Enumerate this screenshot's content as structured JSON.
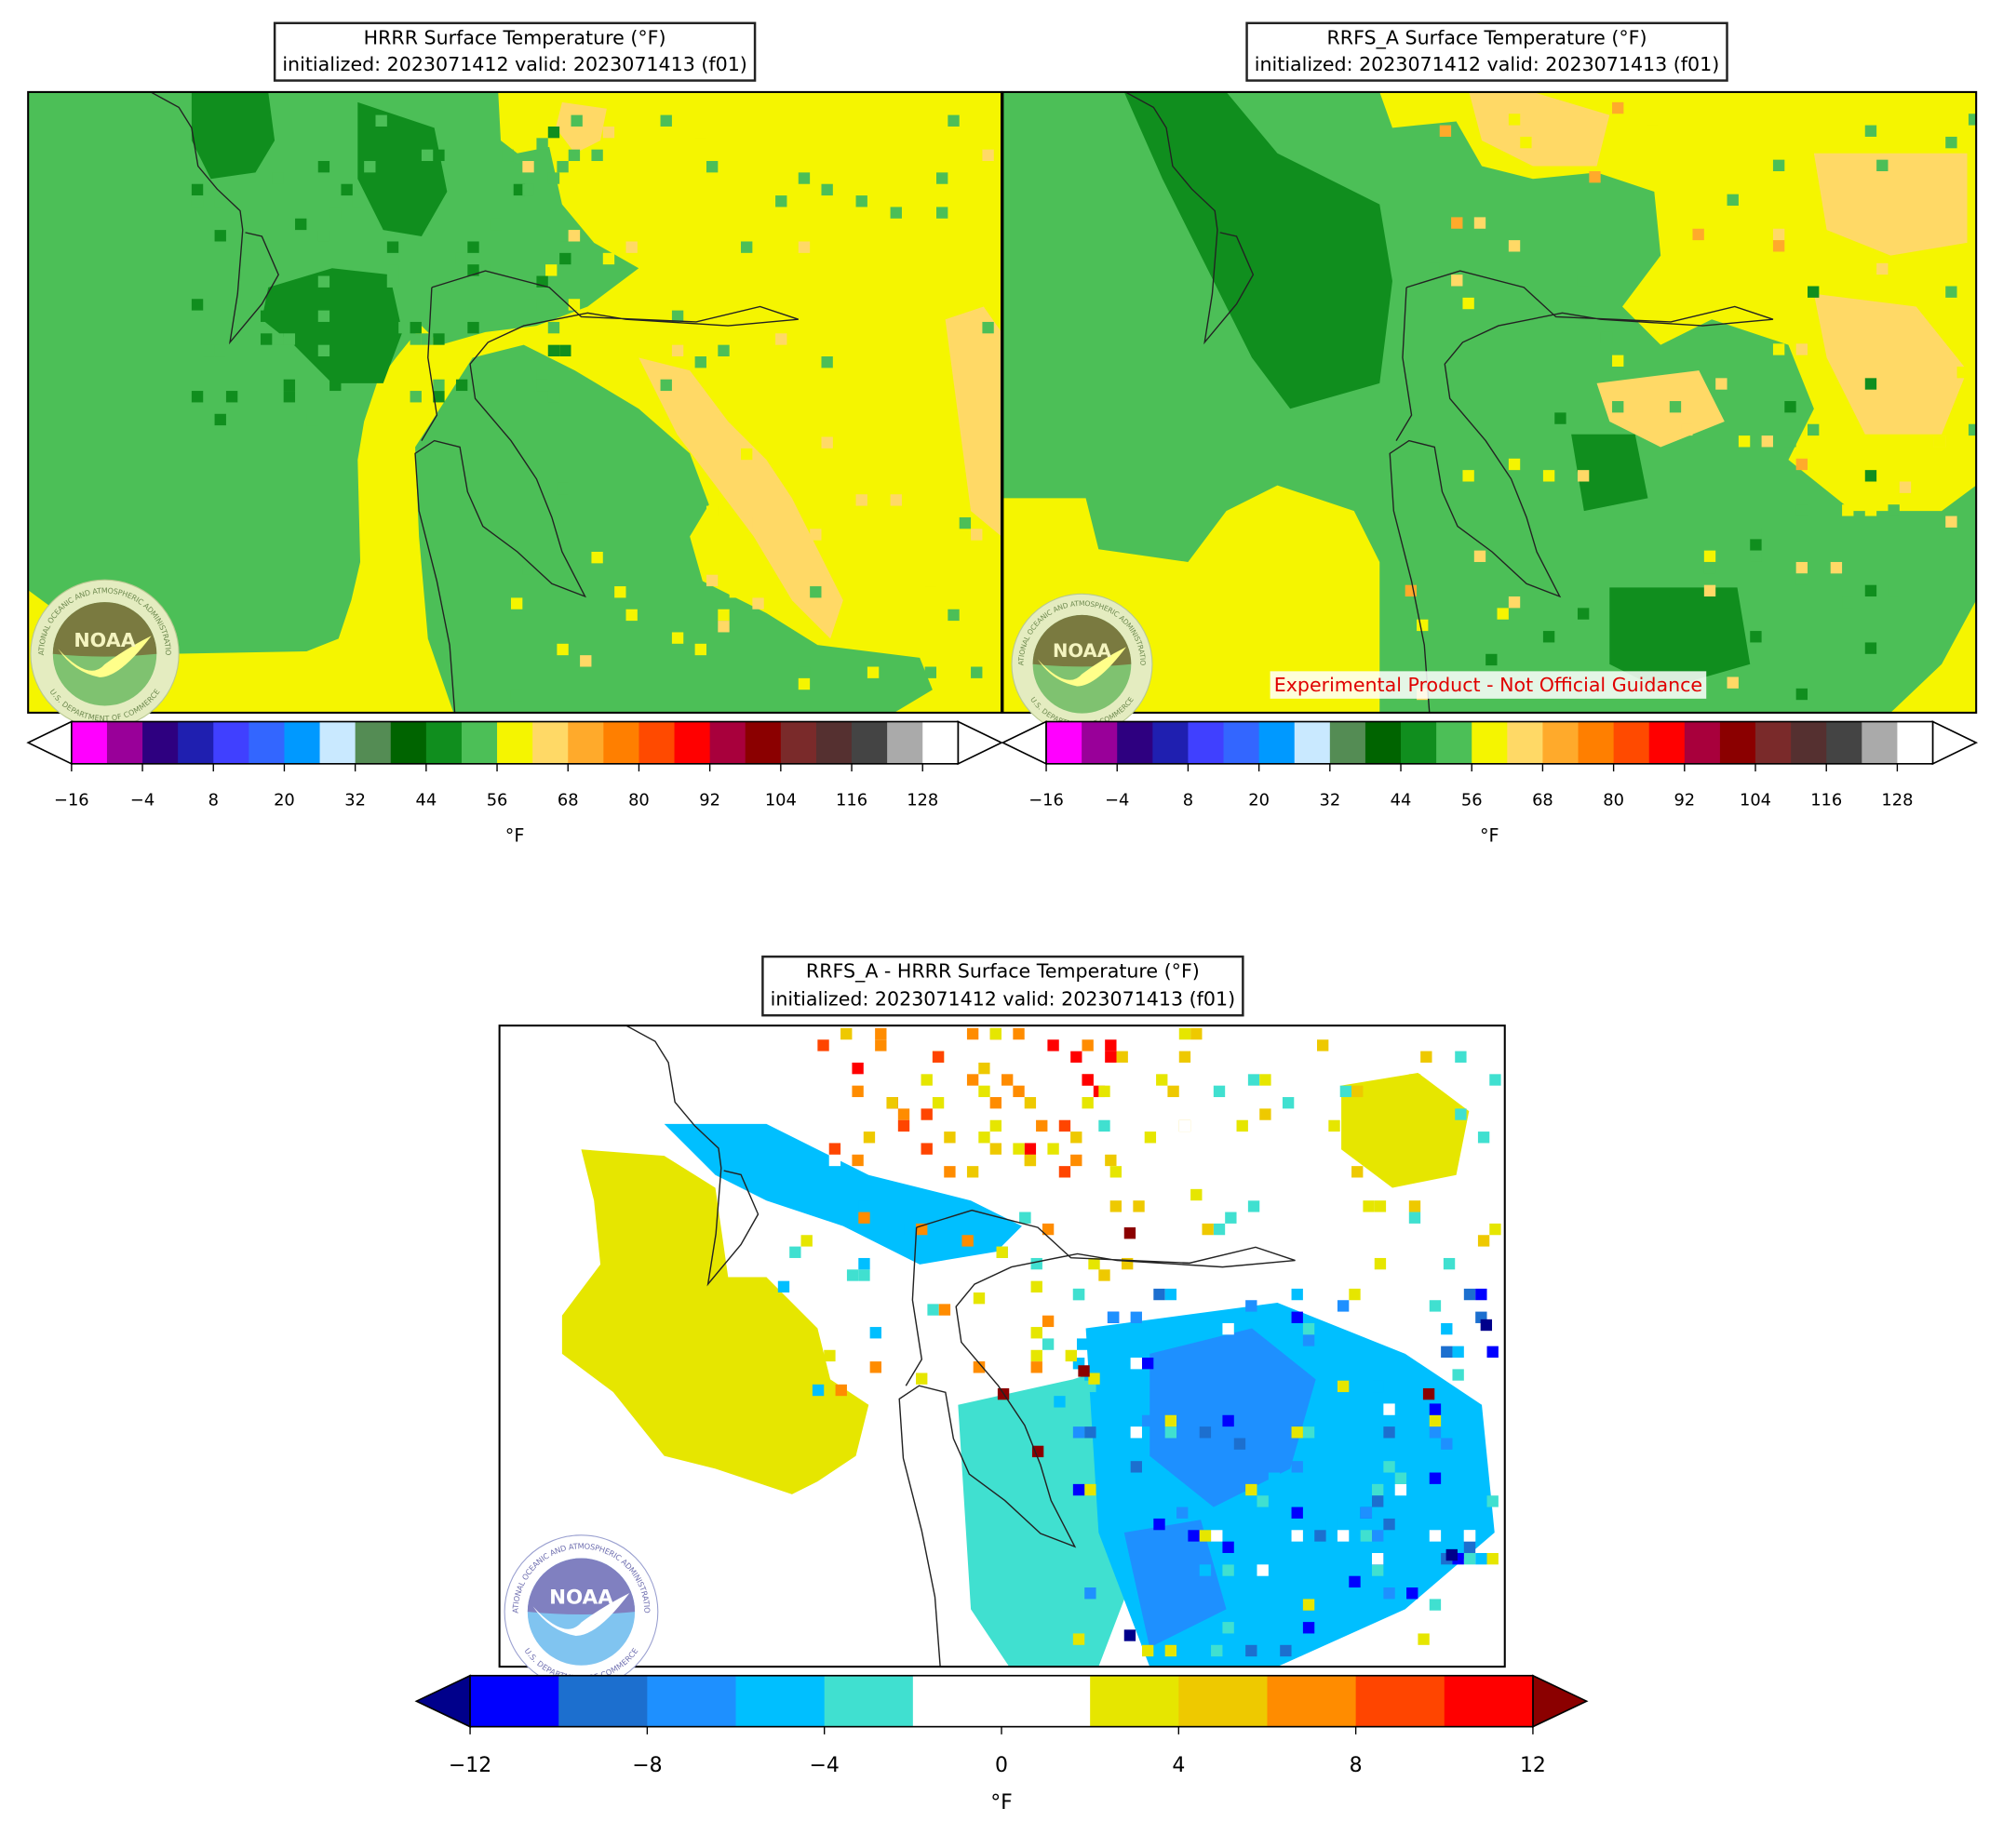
{
  "panels": [
    {
      "title": "HRRR Surface Temperature (°F)",
      "subtitle": "initialized: 2023071412 valid: 2023071413 (f01)",
      "colorbar": {
        "label": "°F",
        "bounds": [
          -16,
          134
        ],
        "colors": [
          "#ff00ff",
          "#990099",
          "#2e0080",
          "#1f1fb0",
          "#4040ff",
          "#3366ff",
          "#0099ff",
          "#c9e9ff",
          "#548c54",
          "#006400",
          "#108e1e",
          "#4cbf57",
          "#f5f500",
          "#ffd966",
          "#ffaa2b",
          "#ff7f00",
          "#ff4a00",
          "#ff0000",
          "#a8003c",
          "#8b0000",
          "#7a2a2a",
          "#553030",
          "#444444",
          "#aaaaaa",
          "#ffffff"
        ],
        "extend_colors": [
          "#ffffff",
          "#ffffff"
        ],
        "ticks": [
          {
            "value": -16,
            "label": "−16"
          },
          {
            "value": -4,
            "label": "−4"
          },
          8,
          20,
          32,
          44,
          56,
          68,
          80,
          92,
          104,
          116,
          128
        ]
      }
    },
    {
      "title": "RRFS_A Surface Temperature (°F)",
      "subtitle": "initialized: 2023071412 valid: 2023071413 (f01)",
      "annotation": "Experimental Product - Not Official Guidance",
      "colorbar": {
        "label": "°F",
        "bounds": [
          -16,
          134
        ],
        "colors": [
          "#ff00ff",
          "#990099",
          "#2e0080",
          "#1f1fb0",
          "#4040ff",
          "#3366ff",
          "#0099ff",
          "#c9e9ff",
          "#548c54",
          "#006400",
          "#108e1e",
          "#4cbf57",
          "#f5f500",
          "#ffd966",
          "#ffaa2b",
          "#ff7f00",
          "#ff4a00",
          "#ff0000",
          "#a8003c",
          "#8b0000",
          "#7a2a2a",
          "#553030",
          "#444444",
          "#aaaaaa",
          "#ffffff"
        ],
        "extend_colors": [
          "#ffffff",
          "#ffffff"
        ],
        "ticks": [
          {
            "value": -16,
            "label": "−16"
          },
          {
            "value": -4,
            "label": "−4"
          },
          8,
          20,
          32,
          44,
          56,
          68,
          80,
          92,
          104,
          116,
          128
        ]
      }
    },
    {
      "title": "RRFS_A - HRRR Surface Temperature (°F)",
      "subtitle": "initialized: 2023071412 valid: 2023071413 (f01)",
      "colorbar": {
        "label": "°F",
        "bounds": [
          -12,
          12
        ],
        "colors": [
          "#0000ff",
          "#1c6fcf",
          "#1e90ff",
          "#00bfff",
          "#40e0d0",
          "#ffffff",
          "#ffffff",
          "#e6e600",
          "#eec900",
          "#ff8c00",
          "#ff4500",
          "#ff0000"
        ],
        "extend_colors": [
          "#00008b",
          "#8b0000"
        ],
        "ticks": [
          {
            "value": -12,
            "label": "−12"
          },
          {
            "value": -8,
            "label": "−8"
          },
          {
            "value": -4,
            "label": "−4"
          },
          0,
          4,
          8,
          12
        ]
      }
    }
  ],
  "logo": {
    "name": "NOAA",
    "agency": "NATIONAL OCEANIC AND ATMOSPHERIC ADMINISTRATION",
    "department": "U.S. DEPARTMENT OF COMMERCE"
  }
}
